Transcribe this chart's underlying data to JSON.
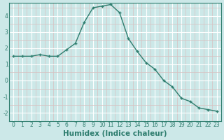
{
  "x": [
    0,
    1,
    2,
    3,
    4,
    5,
    6,
    7,
    8,
    9,
    10,
    11,
    12,
    13,
    14,
    15,
    16,
    17,
    18,
    19,
    20,
    21,
    22,
    23
  ],
  "y": [
    1.5,
    1.5,
    1.5,
    1.6,
    1.5,
    1.5,
    1.9,
    2.3,
    3.6,
    4.5,
    4.6,
    4.7,
    4.2,
    2.6,
    1.8,
    1.1,
    0.7,
    0.0,
    -0.4,
    -1.1,
    -1.3,
    -1.7,
    -1.8,
    -1.9
  ],
  "line_color": "#2e7d6e",
  "marker": "+",
  "marker_size": 3.5,
  "linewidth": 1.0,
  "xlabel": "Humidex (Indice chaleur)",
  "bg_color": "#cce8e8",
  "minor_grid_color": "#d8c0c0",
  "major_grid_color": "#ffffff",
  "xlim": [
    -0.5,
    23.5
  ],
  "ylim": [
    -2.5,
    4.8
  ],
  "yticks": [
    -2,
    -1,
    0,
    1,
    2,
    3,
    4
  ],
  "xticks": [
    0,
    1,
    2,
    3,
    4,
    5,
    6,
    7,
    8,
    9,
    10,
    11,
    12,
    13,
    14,
    15,
    16,
    17,
    18,
    19,
    20,
    21,
    22,
    23
  ],
  "tick_fontsize": 5.5,
  "xlabel_fontsize": 7.5,
  "tick_color": "#2e7d6e",
  "label_color": "#2e7d6e",
  "spine_color": "#2e7d6e"
}
